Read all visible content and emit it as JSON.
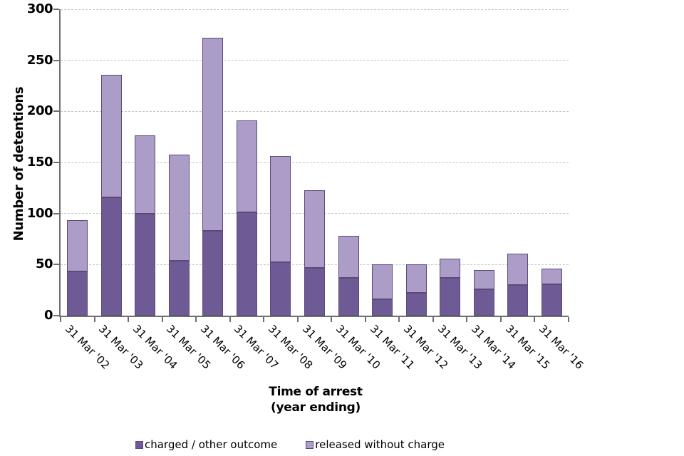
{
  "chart_data": {
    "type": "bar",
    "stacked": true,
    "title": "",
    "categories": [
      "31 Mar '02",
      "31 Mar '03",
      "31 Mar '04",
      "31 Mar '05",
      "31 Mar '06",
      "31 Mar '07",
      "31 Mar '08",
      "31 Mar '09",
      "31 Mar '10",
      "31 Mar '11",
      "31 Mar '12",
      "31 Mar '13",
      "31 Mar '14",
      "31 Mar '15",
      "31 Mar '16"
    ],
    "series": [
      {
        "name": "charged / other outcome",
        "color": "#6e5b95",
        "values": [
          43,
          116,
          100,
          54,
          83,
          101,
          52,
          47,
          37,
          16,
          22,
          37,
          26,
          30,
          31
        ]
      },
      {
        "name": "released without charge",
        "color": "#ab9dc8",
        "values": [
          50,
          120,
          77,
          104,
          189,
          90,
          104,
          76,
          41,
          34,
          28,
          19,
          19,
          31,
          15
        ]
      }
    ],
    "ylabel": "Number of detentions",
    "xlabel": "Time of arrest (year ending)",
    "xlabel_line1": "Time of arrest",
    "xlabel_line2": "(year ending)",
    "ylim": [
      0,
      300
    ],
    "ytick_step": 50,
    "ytick_labels": [
      "0",
      "50",
      "100",
      "150",
      "200",
      "250",
      "300"
    ],
    "grid": "horizontal-dashed",
    "legend_position": "bottom",
    "bar_border_color": "#5a4a78",
    "gridline_color": "#c6c6c6",
    "axis_color": "#6f6f6f"
  }
}
